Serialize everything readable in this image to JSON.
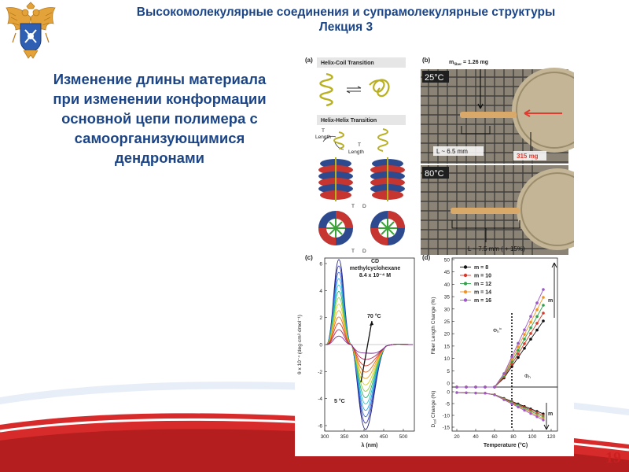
{
  "header": {
    "title_line1": "Высокомолекулярные соединения и супрамолекулярные структуры",
    "title_line2": "Лекция 3"
  },
  "body_text": [
    "Изменение длины материала",
    "при изменении конформации",
    "основной цепи полимера с",
    "самоорганизующимися",
    "дендронами"
  ],
  "page_number": "19",
  "colors": {
    "title": "#1c4587",
    "accent_red": "#cc1f1f",
    "swoosh": "#d72b2b"
  },
  "figure": {
    "panel_a": {
      "label": "(a)",
      "helix_coil": "Helix-Coil Transition",
      "helix_helix": "Helix-Helix Transition",
      "length": "Length",
      "t": "T",
      "dcol": "D"
    },
    "panel_b": {
      "label": "(b)",
      "mfiber": "m",
      "mfiber_sub": "fiber",
      "mfiber_val": " = 1.26 mg",
      "temp_top": "25°C",
      "temp_bottom": "80°C",
      "length_top": "L ~ 6.5 mm",
      "length_bottom": "L ~ 7.5 mm ( + 15%)",
      "mass": "315 mg"
    },
    "panel_c": {
      "label": "(c)",
      "title1": "CD",
      "title2": "methylcyclohexane",
      "title3": "8.4 x 10⁻⁴ M",
      "ylabel": "θ x 10⁻⁴ (deg·cm²·dmol⁻¹)",
      "xlabel": "λ (nm)",
      "t_hot": "70 °C",
      "t_cold": "5 °C",
      "x_ticks": [
        "300",
        "350",
        "400",
        "450",
        "500"
      ],
      "y_ticks": [
        "6",
        "4",
        "2",
        "0",
        "-2",
        "-4",
        "-6"
      ]
    },
    "panel_d": {
      "label": "(d)",
      "ylabel_top": "Fiber Length Change (%)",
      "ylabel_bottom": "D",
      "ylabel_bottom_sub": "col",
      "ylabel_bottom_rest": " Change (%)",
      "xlabel": "Temperature (°C)",
      "legend": [
        "m = 8",
        "m = 10",
        "m = 12",
        "m = 14",
        "m = 16"
      ],
      "m": "m",
      "phi_h_lc": "Φ",
      "phi_h": "Φ",
      "x_ticks": [
        "20",
        "40",
        "60",
        "80",
        "100",
        "120"
      ],
      "y_ticks_top": [
        "50",
        "45",
        "40",
        "35",
        "30",
        "25",
        "20",
        "15",
        "10",
        "5",
        "0"
      ],
      "y_ticks_bottom": [
        "0",
        "-5",
        "-10",
        "-15"
      ]
    }
  }
}
